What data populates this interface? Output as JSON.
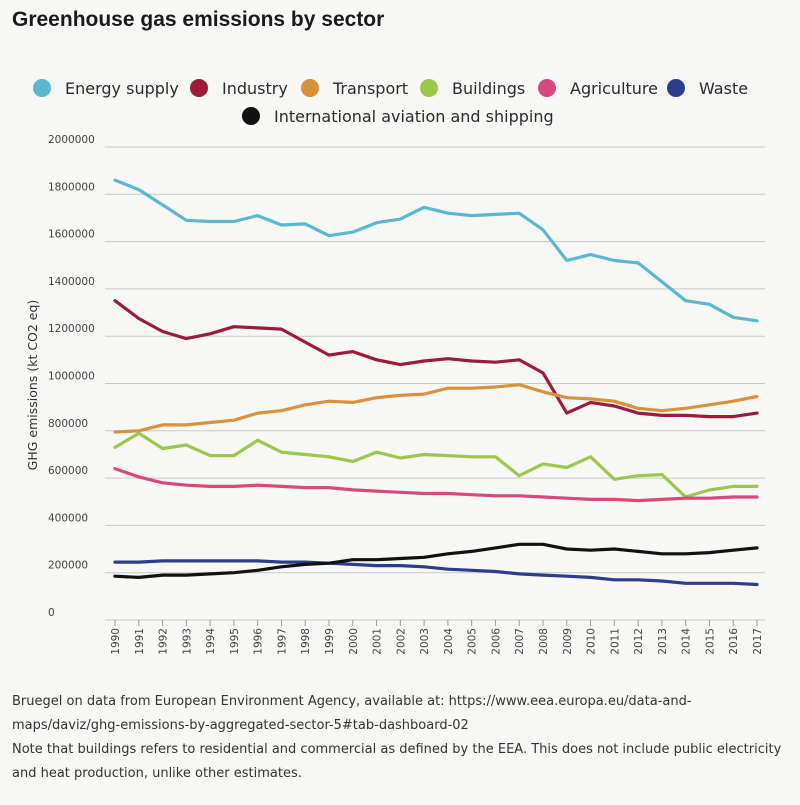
{
  "chart_data": {
    "type": "line",
    "title": "Greenhouse gas emissions by sector",
    "ylabel": "GHG emissions (kt CO2 eq)",
    "xlabel": "",
    "ylim": [
      0,
      2000000
    ],
    "yticks": [
      0,
      200000,
      400000,
      600000,
      800000,
      1000000,
      1200000,
      1400000,
      1600000,
      1800000,
      2000000
    ],
    "ytick_labels": [
      "0",
      "200000",
      "400000",
      "600000",
      "800000",
      "1000000",
      "1200000",
      "1400000",
      "1600000",
      "1800000",
      "2000000"
    ],
    "categories": [
      "1990",
      "1991",
      "1992",
      "1993",
      "1994",
      "1995",
      "1996",
      "1997",
      "1998",
      "1999",
      "2000",
      "2001",
      "2002",
      "2003",
      "2004",
      "2005",
      "2006",
      "2007",
      "2008",
      "2009",
      "2010",
      "2011",
      "2012",
      "2013",
      "2014",
      "2015",
      "2016",
      "2017"
    ],
    "series": [
      {
        "name": "Energy supply",
        "color": "#5bb7d0",
        "values": [
          1860000,
          1820000,
          1755000,
          1690000,
          1685000,
          1685000,
          1710000,
          1670000,
          1675000,
          1625000,
          1640000,
          1680000,
          1695000,
          1745000,
          1720000,
          1710000,
          1715000,
          1720000,
          1650000,
          1520000,
          1545000,
          1520000,
          1510000,
          1430000,
          1350000,
          1335000,
          1280000,
          1265000
        ]
      },
      {
        "name": "Industry",
        "color": "#9b1c3a",
        "values": [
          1350000,
          1275000,
          1220000,
          1190000,
          1210000,
          1240000,
          1235000,
          1230000,
          1175000,
          1120000,
          1135000,
          1100000,
          1080000,
          1095000,
          1105000,
          1095000,
          1090000,
          1100000,
          1045000,
          875000,
          920000,
          905000,
          875000,
          865000,
          865000,
          860000,
          860000,
          875000
        ]
      },
      {
        "name": "Transport",
        "color": "#d9913b",
        "values": [
          795000,
          800000,
          825000,
          825000,
          835000,
          845000,
          875000,
          885000,
          910000,
          925000,
          920000,
          940000,
          950000,
          955000,
          980000,
          980000,
          985000,
          995000,
          965000,
          940000,
          935000,
          925000,
          895000,
          885000,
          895000,
          910000,
          925000,
          945000
        ]
      },
      {
        "name": "Buildings",
        "color": "#9bc84a",
        "values": [
          730000,
          790000,
          725000,
          740000,
          695000,
          695000,
          760000,
          710000,
          700000,
          690000,
          670000,
          710000,
          685000,
          700000,
          695000,
          690000,
          690000,
          610000,
          660000,
          645000,
          690000,
          595000,
          610000,
          615000,
          520000,
          550000,
          565000,
          565000
        ]
      },
      {
        "name": "Agriculture",
        "color": "#d6497e",
        "values": [
          640000,
          605000,
          580000,
          570000,
          565000,
          565000,
          570000,
          565000,
          560000,
          560000,
          550000,
          545000,
          540000,
          535000,
          535000,
          530000,
          525000,
          525000,
          520000,
          515000,
          510000,
          510000,
          505000,
          510000,
          515000,
          515000,
          520000,
          520000
        ]
      },
      {
        "name": "Waste",
        "color": "#2e3c8e",
        "values": [
          245000,
          245000,
          250000,
          250000,
          250000,
          250000,
          250000,
          245000,
          245000,
          240000,
          235000,
          230000,
          230000,
          225000,
          215000,
          210000,
          205000,
          195000,
          190000,
          185000,
          180000,
          170000,
          170000,
          165000,
          155000,
          155000,
          155000,
          150000
        ]
      },
      {
        "name": "International aviation and shipping",
        "color": "#111111",
        "values": [
          185000,
          180000,
          190000,
          190000,
          195000,
          200000,
          210000,
          225000,
          235000,
          240000,
          255000,
          255000,
          260000,
          265000,
          280000,
          290000,
          305000,
          320000,
          320000,
          300000,
          295000,
          300000,
          290000,
          280000,
          280000,
          285000,
          295000,
          305000
        ]
      }
    ]
  },
  "notes": [
    "Bruegel on data from European Environment Agency, available at: https://www.eea.europa.eu/data-and-maps/daviz/ghg-emissions-by-aggregated-sector-5#tab-dashboard-02",
    "Note that buildings refers to residential and commercial as defined by the EEA. This does not include public electricity and heat production, unlike other estimates."
  ]
}
